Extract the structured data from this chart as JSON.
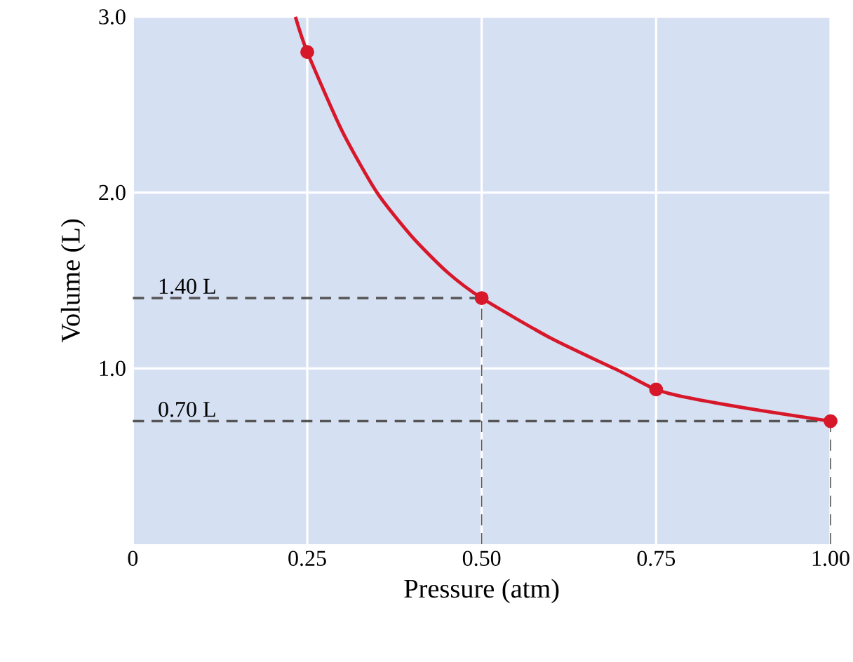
{
  "chart_data": {
    "type": "line",
    "xlabel": "Pressure (atm)",
    "ylabel": "Volume (L)",
    "xlim": [
      0,
      1.0
    ],
    "ylim": [
      0,
      3.0
    ],
    "xticks": [
      0,
      {
        "value": 0.25,
        "label": "0.25"
      },
      {
        "value": 0.5,
        "label": "0.50"
      },
      {
        "value": 0.75,
        "label": "0.75"
      },
      {
        "value": 1.0,
        "label": "1.00"
      }
    ],
    "yticks": [
      {
        "value": 1.0,
        "label": "1.0"
      },
      {
        "value": 2.0,
        "label": "2.0"
      },
      {
        "value": 3.0,
        "label": "3.0"
      }
    ],
    "grid": true,
    "series": [
      {
        "color": "#d7182a",
        "marker": "none",
        "x": [
          0.233,
          0.25,
          0.3,
          0.35,
          0.4,
          0.45,
          0.5,
          0.6,
          0.7,
          0.75,
          0.8,
          0.9,
          1.0
        ],
        "values": [
          3.0,
          2.8,
          2.35,
          2.0,
          1.75,
          1.55,
          1.4,
          1.17,
          0.98,
          0.88,
          0.83,
          0.76,
          0.7
        ]
      },
      {
        "type": "scatter",
        "color": "#d7182a",
        "marker": "circle",
        "x": [
          0.25,
          0.5,
          0.75,
          1.0
        ],
        "values": [
          2.8,
          1.4,
          0.88,
          0.7
        ]
      }
    ],
    "ref_lines": [
      {
        "axis": "y",
        "value": 1.4,
        "label": "1.40 L",
        "color": "#555555",
        "line_style": "dashed"
      },
      {
        "axis": "y",
        "value": 0.7,
        "label": "0.70 L",
        "color": "#555555",
        "line_style": "dashed"
      },
      {
        "axis": "x",
        "value": 0.5,
        "color": "#555555",
        "line_style": "dashed"
      },
      {
        "axis": "x",
        "value": 1.0,
        "color": "#555555",
        "line_style": "dashed"
      }
    ]
  }
}
